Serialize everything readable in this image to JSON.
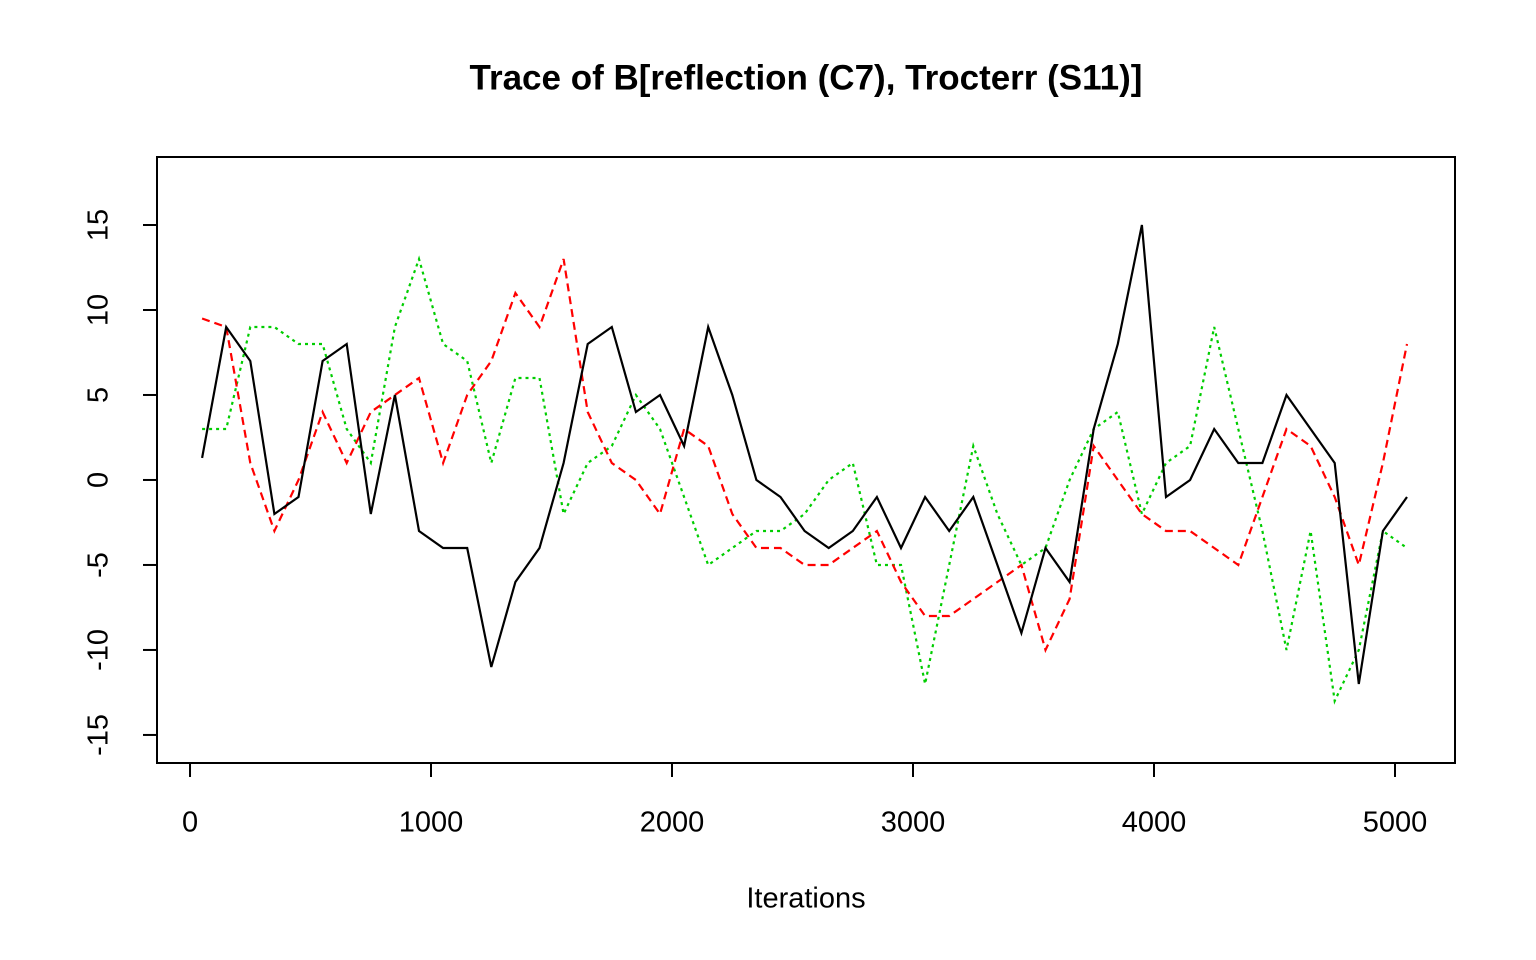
{
  "chart_data": {
    "type": "line",
    "title": "Trace of B[reflection (C7), Trocterr (S11)]",
    "x_label": "Iterations",
    "xlim": [
      -137,
      5249
    ],
    "ylim": [
      -16.65,
      19
    ],
    "xticks": [
      0,
      1000,
      2000,
      3000,
      4000,
      5000
    ],
    "yticks": [
      -15,
      -10,
      -5,
      0,
      5,
      10,
      15
    ],
    "x": [
      50,
      150,
      250,
      350,
      450,
      550,
      650,
      750,
      850,
      950,
      1050,
      1150,
      1250,
      1350,
      1450,
      1550,
      1650,
      1750,
      1850,
      1950,
      2050,
      2150,
      2250,
      2350,
      2450,
      2550,
      2650,
      2750,
      2850,
      2950,
      3050,
      3150,
      3250,
      3350,
      3450,
      3550,
      3650,
      3750,
      3850,
      3950,
      4050,
      4150,
      4250,
      4350,
      4450,
      4550,
      4650,
      4750,
      4850,
      4950,
      5050
    ],
    "series": [
      {
        "color": "#000000",
        "dash": "solid",
        "values": [
          1.3,
          9,
          7,
          -2,
          -1,
          7,
          8,
          -2,
          5,
          -3,
          -4,
          -4,
          -11,
          -6,
          -4,
          1,
          8,
          9,
          4,
          5,
          2,
          9,
          5,
          0,
          -1,
          -3,
          -4,
          -3,
          -1,
          -4,
          -1,
          -3,
          -1,
          -5,
          -9,
          -4,
          -6,
          3,
          8,
          15,
          -1,
          0,
          3,
          1,
          1,
          5,
          3,
          1,
          -12,
          -3,
          -1
        ]
      },
      {
        "color": "#ff0000",
        "dash": "dashed",
        "values": [
          9.5,
          9,
          1,
          -3,
          0,
          4,
          1,
          4,
          5,
          6,
          1,
          5,
          7,
          11,
          9,
          13,
          4,
          1,
          0,
          -2,
          3,
          2,
          -2,
          -4,
          -4,
          -5,
          -5,
          -4,
          -3,
          -6,
          -8,
          -8,
          -7,
          -6,
          -5,
          -10,
          -7,
          2,
          0,
          -2,
          -3,
          -3,
          -4,
          -5,
          -1,
          3,
          2,
          -1,
          -5,
          1,
          8
        ]
      },
      {
        "color": "#00cd00",
        "dash": "dotted",
        "values": [
          3,
          3,
          9,
          9,
          8,
          8,
          3,
          1,
          9,
          13,
          8,
          7,
          1,
          6,
          6,
          -2,
          1,
          2,
          5,
          3,
          -1,
          -5,
          -4,
          -3,
          -3,
          -2,
          0,
          1,
          -5,
          -5,
          -12,
          -5,
          2,
          -2,
          -5,
          -4,
          0,
          3,
          4,
          -2,
          1,
          2,
          9,
          3,
          -3,
          -10,
          -3,
          -13,
          -10,
          -3,
          -4
        ]
      }
    ]
  }
}
